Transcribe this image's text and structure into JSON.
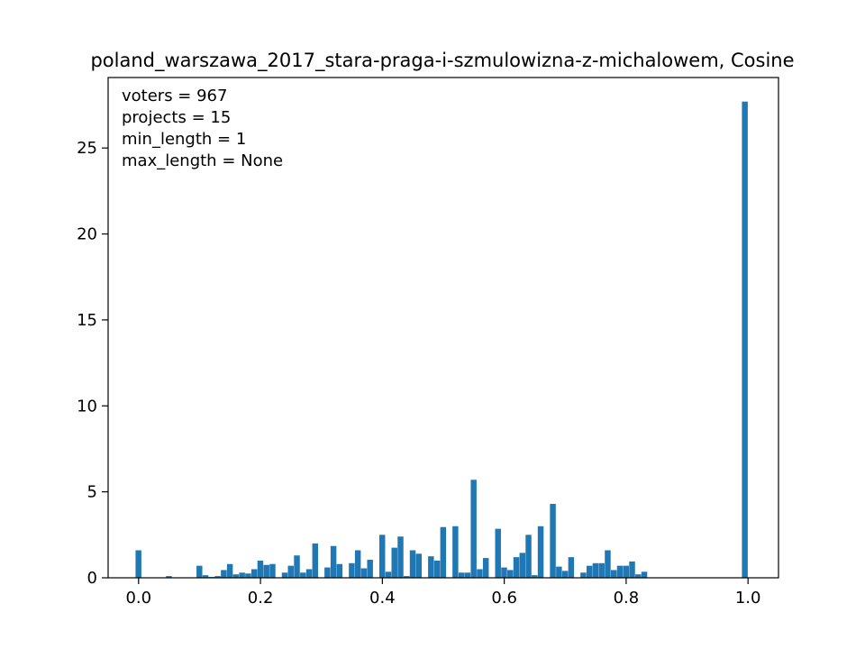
{
  "chart_data": {
    "type": "bar",
    "title": "poland_warszawa_2017_stara-praga-i-szmulowizna-z-michalowem, Cosine",
    "xlabel": "",
    "ylabel": "",
    "xlim": [
      -0.05,
      1.05
    ],
    "ylim": [
      0,
      29.1
    ],
    "xticks": [
      0.0,
      0.2,
      0.4,
      0.6,
      0.8,
      1.0
    ],
    "xtick_labels": [
      "0.0",
      "0.2",
      "0.4",
      "0.6",
      "0.8",
      "1.0"
    ],
    "yticks": [
      0,
      5,
      10,
      15,
      20,
      25
    ],
    "ytick_labels": [
      "0",
      "5",
      "10",
      "15",
      "20",
      "25"
    ],
    "bin_width": 0.01,
    "bar_color": "#1f77b4",
    "bins": [
      {
        "x": 0.0,
        "v": 1.6
      },
      {
        "x": 0.05,
        "v": 0.1
      },
      {
        "x": 0.1,
        "v": 0.7
      },
      {
        "x": 0.11,
        "v": 0.15
      },
      {
        "x": 0.12,
        "v": 0.05
      },
      {
        "x": 0.13,
        "v": 0.1
      },
      {
        "x": 0.14,
        "v": 0.45
      },
      {
        "x": 0.15,
        "v": 0.8
      },
      {
        "x": 0.16,
        "v": 0.2
      },
      {
        "x": 0.17,
        "v": 0.3
      },
      {
        "x": 0.18,
        "v": 0.25
      },
      {
        "x": 0.19,
        "v": 0.5
      },
      {
        "x": 0.2,
        "v": 1.0
      },
      {
        "x": 0.21,
        "v": 0.75
      },
      {
        "x": 0.22,
        "v": 0.8
      },
      {
        "x": 0.24,
        "v": 0.3
      },
      {
        "x": 0.25,
        "v": 0.7
      },
      {
        "x": 0.26,
        "v": 1.3
      },
      {
        "x": 0.27,
        "v": 0.3
      },
      {
        "x": 0.28,
        "v": 0.5
      },
      {
        "x": 0.29,
        "v": 2.0
      },
      {
        "x": 0.31,
        "v": 0.6
      },
      {
        "x": 0.32,
        "v": 1.85
      },
      {
        "x": 0.33,
        "v": 0.8
      },
      {
        "x": 0.35,
        "v": 0.85
      },
      {
        "x": 0.36,
        "v": 1.6
      },
      {
        "x": 0.37,
        "v": 0.55
      },
      {
        "x": 0.38,
        "v": 1.05
      },
      {
        "x": 0.4,
        "v": 2.5
      },
      {
        "x": 0.41,
        "v": 0.35
      },
      {
        "x": 0.42,
        "v": 1.75
      },
      {
        "x": 0.43,
        "v": 2.4
      },
      {
        "x": 0.44,
        "v": 0.1
      },
      {
        "x": 0.45,
        "v": 1.6
      },
      {
        "x": 0.46,
        "v": 1.4
      },
      {
        "x": 0.48,
        "v": 1.25
      },
      {
        "x": 0.49,
        "v": 1.0
      },
      {
        "x": 0.5,
        "v": 2.95
      },
      {
        "x": 0.52,
        "v": 3.0
      },
      {
        "x": 0.53,
        "v": 0.3
      },
      {
        "x": 0.54,
        "v": 0.3
      },
      {
        "x": 0.55,
        "v": 5.7
      },
      {
        "x": 0.56,
        "v": 0.5
      },
      {
        "x": 0.57,
        "v": 1.15
      },
      {
        "x": 0.59,
        "v": 2.85
      },
      {
        "x": 0.6,
        "v": 0.6
      },
      {
        "x": 0.61,
        "v": 0.45
      },
      {
        "x": 0.62,
        "v": 1.2
      },
      {
        "x": 0.63,
        "v": 1.45
      },
      {
        "x": 0.64,
        "v": 2.5
      },
      {
        "x": 0.65,
        "v": 0.15
      },
      {
        "x": 0.66,
        "v": 3.0
      },
      {
        "x": 0.68,
        "v": 4.3
      },
      {
        "x": 0.69,
        "v": 0.65
      },
      {
        "x": 0.7,
        "v": 0.4
      },
      {
        "x": 0.71,
        "v": 1.2
      },
      {
        "x": 0.73,
        "v": 0.3
      },
      {
        "x": 0.74,
        "v": 0.7
      },
      {
        "x": 0.75,
        "v": 0.85
      },
      {
        "x": 0.76,
        "v": 0.85
      },
      {
        "x": 0.77,
        "v": 1.6
      },
      {
        "x": 0.78,
        "v": 0.45
      },
      {
        "x": 0.79,
        "v": 0.7
      },
      {
        "x": 0.8,
        "v": 0.7
      },
      {
        "x": 0.81,
        "v": 0.95
      },
      {
        "x": 0.82,
        "v": 0.2
      },
      {
        "x": 0.83,
        "v": 0.35
      },
      {
        "x": 0.995,
        "v": 27.7
      }
    ],
    "annotations": [
      "voters = 967",
      "projects = 15",
      "min_length = 1",
      "max_length = None"
    ],
    "legend": "none",
    "grid": false
  }
}
